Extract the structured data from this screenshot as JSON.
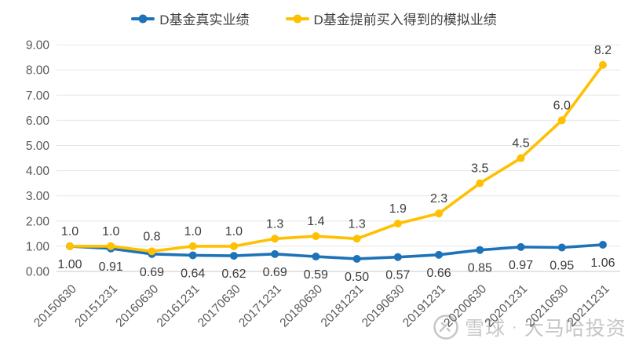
{
  "chart_data": {
    "type": "line",
    "title": "",
    "xlabel": "",
    "ylabel": "",
    "ylim": [
      0,
      9
    ],
    "ytick_step": 1,
    "grid": true,
    "legend_position": "top",
    "categories": [
      "20150630",
      "20151231",
      "20160630",
      "20161231",
      "20170630",
      "20171231",
      "20180630",
      "20181231",
      "20190630",
      "20191231",
      "20200630",
      "20201231",
      "20210630",
      "20211231"
    ],
    "series": [
      {
        "name": "D基金真实业绩",
        "color": "#1e73b8",
        "label_position": "below",
        "values": [
          1.0,
          0.91,
          0.69,
          0.64,
          0.62,
          0.69,
          0.59,
          0.5,
          0.57,
          0.66,
          0.85,
          0.97,
          0.95,
          1.06
        ],
        "labels": [
          "1.00",
          "0.91",
          "0.69",
          "0.64",
          "0.62",
          "0.69",
          "0.59",
          "0.50",
          "0.57",
          "0.66",
          "0.85",
          "0.97",
          "0.95",
          "1.06"
        ]
      },
      {
        "name": "D基金提前买入得到的模拟业绩",
        "color": "#ffc000",
        "label_position": "above",
        "values": [
          1.0,
          1.0,
          0.8,
          1.0,
          1.0,
          1.3,
          1.4,
          1.3,
          1.9,
          2.3,
          3.5,
          4.5,
          6.0,
          8.2
        ],
        "labels": [
          "1.0",
          "1.0",
          "0.8",
          "1.0",
          "1.0",
          "1.3",
          "1.4",
          "1.3",
          "1.9",
          "2.3",
          "3.5",
          "4.5",
          "6.0",
          "8.2"
        ]
      }
    ]
  },
  "watermark": {
    "site": "雪球",
    "separator": "·",
    "account": "大马哈投资"
  },
  "colors": {
    "blue": "#1e73b8",
    "yellow": "#ffc000",
    "grid": "#e6e6e6",
    "axis": "#c9c9c9",
    "tick_text": "#595959",
    "label_text": "#3d3d3d",
    "watermark": "#c6c6c6"
  }
}
